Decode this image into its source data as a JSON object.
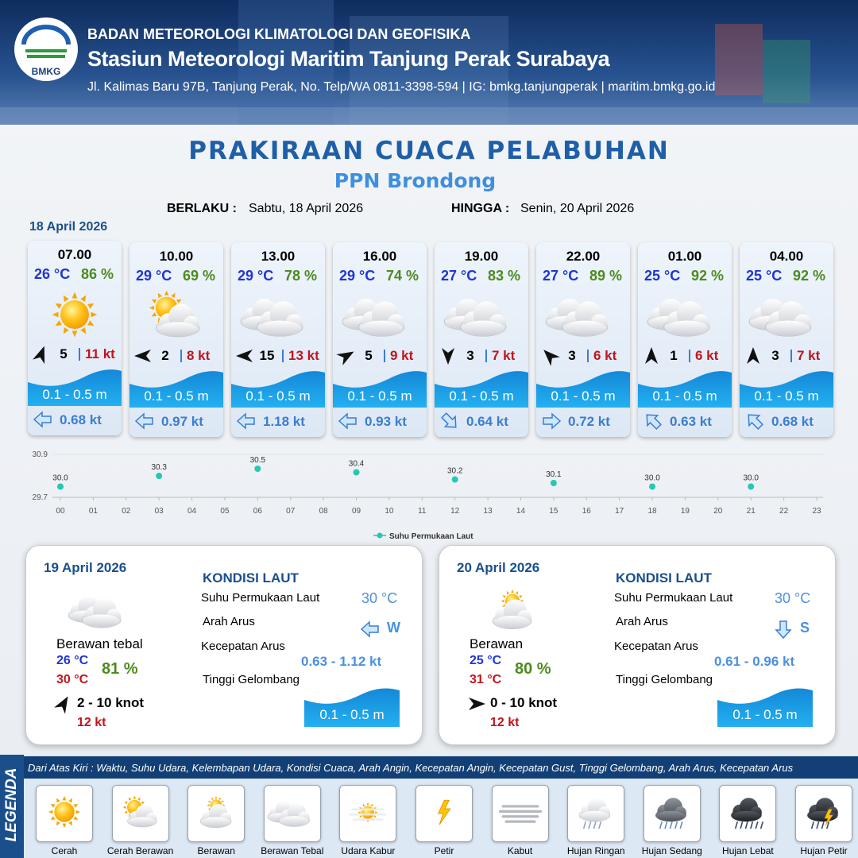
{
  "header": {
    "logo_text": "BMKG",
    "agency": "BADAN METEOROLOGI KLIMATOLOGI DAN GEOFISIKA",
    "station": "Stasiun Meteorologi Maritim Tanjung Perak Surabaya",
    "address": "Jl. Kalimas Baru 97B, Tanjung Perak, No. Telp/WA 0811-3398-594 | IG: bmkg.tanjungperak | maritim.bmkg.go.id"
  },
  "title": "PRAKIRAAN CUACA PELABUHAN",
  "location": "PPN Brondong",
  "validity": {
    "from_label": "BERLAKU :",
    "from": "Sabtu, 18 April 2026",
    "to_label": "HINGGA :",
    "to": "Senin, 20 April 2026"
  },
  "forecast_date": "18 April 2026",
  "forecasts": [
    {
      "time": "07.00",
      "temperature": "26 °C",
      "humidity": "86 %",
      "wind_speed": 5,
      "gust": "11 kt",
      "wave": "0.1 - 0.5 m",
      "current_speed": "0.68 kt"
    },
    {
      "time": "10.00",
      "temperature": "29 °C",
      "humidity": "69 %",
      "wind_speed": 2,
      "gust": "8 kt",
      "wave": "0.1 - 0.5 m",
      "current_speed": "0.97 kt"
    },
    {
      "time": "13.00",
      "temperature": "29 °C",
      "humidity": "78 %",
      "wind_speed": 15,
      "gust": "13 kt",
      "wave": "0.1 - 0.5 m",
      "current_speed": "1.18 kt"
    },
    {
      "time": "16.00",
      "temperature": "29 °C",
      "humidity": "74 %",
      "wind_speed": 5,
      "gust": "9 kt",
      "wave": "0.1 - 0.5 m",
      "current_speed": "0.93 kt"
    },
    {
      "time": "19.00",
      "temperature": "27 °C",
      "humidity": "83 %",
      "wind_speed": 3,
      "gust": "7 kt",
      "wave": "0.1 - 0.5 m",
      "current_speed": "0.64 kt"
    },
    {
      "time": "22.00",
      "temperature": "27 °C",
      "humidity": "89 %",
      "wind_speed": 3,
      "gust": "6 kt",
      "wave": "0.1 - 0.5 m",
      "current_speed": "0.72 kt"
    },
    {
      "time": "01.00",
      "temperature": "25 °C",
      "humidity": "92 %",
      "wind_speed": 1,
      "gust": "6 kt",
      "wave": "0.1 - 0.5 m",
      "current_speed": "0.63 kt"
    },
    {
      "time": "04.00",
      "temperature": "25 °C",
      "humidity": "92 %",
      "wind_speed": 3,
      "gust": "7 kt",
      "wave": "0.1 - 0.5 m",
      "current_speed": "0.68 kt"
    }
  ],
  "chart_data": {
    "type": "scatter",
    "x": [
      0,
      3,
      6,
      9,
      12,
      15,
      18,
      21
    ],
    "series": [
      {
        "name": "Suhu Permukaan Laut",
        "color": "#25c9b2",
        "values": [
          30.0,
          30.3,
          30.5,
          30.4,
          30.2,
          30.1,
          30.0,
          30.0
        ],
        "value_labels": [
          "30.0",
          "30.3",
          "30.5",
          "30.4",
          "30.2",
          "30.1",
          "30.0",
          "30.0"
        ]
      }
    ],
    "xlim": [
      0,
      23
    ],
    "xticks": [
      {
        "value": 0,
        "label": "00"
      },
      {
        "value": 1,
        "label": "01"
      },
      {
        "value": 2,
        "label": "02"
      },
      {
        "value": 3,
        "label": "03"
      },
      {
        "value": 4,
        "label": "04"
      },
      {
        "value": 5,
        "label": "05"
      },
      {
        "value": 6,
        "label": "06"
      },
      {
        "value": 7,
        "label": "07"
      },
      {
        "value": 8,
        "label": "08"
      },
      {
        "value": 9,
        "label": "09"
      },
      10,
      11,
      12,
      13,
      14,
      15,
      16,
      17,
      18,
      19,
      20,
      21,
      22,
      23
    ],
    "ylim": [
      29.7,
      30.9
    ],
    "yticks": [
      29.7,
      30.9
    ],
    "grid": true,
    "legend": "bottom"
  },
  "daily": [
    {
      "date": "19 April 2026",
      "condition": "Berawan tebal",
      "temp_min": "26 °C",
      "temp_max": "30 °C",
      "humidity": "81 %",
      "wind": "2 - 10 knot",
      "gust": "12 kt",
      "sea_title": "KONDISI LAUT",
      "sst_label": "Suhu Permukaan Laut",
      "sst": "30 °C",
      "current_dir_label": "Arah Arus",
      "current_dir": "W",
      "current_speed_label": "Kecepatan Arus",
      "current_speed": "0.63  - 1.12 kt",
      "wave_label": "Tinggi Gelombang",
      "wave": "0.1 - 0.5 m"
    },
    {
      "date": "20 April 2026",
      "condition": "Berawan",
      "temp_min": "25 °C",
      "temp_max": "31 °C",
      "humidity": "80 %",
      "wind": "0 - 10 knot",
      "gust": "12 kt",
      "sea_title": "KONDISI LAUT",
      "sst_label": "Suhu Permukaan Laut",
      "sst": "30 °C",
      "current_dir_label": "Arah Arus",
      "current_dir": "S",
      "current_speed_label": "Kecepatan Arus",
      "current_speed": "0.61 - 0.96 kt",
      "wave_label": "Tinggi Gelombang",
      "wave": "0.1 - 0.5 m"
    }
  ],
  "legend": {
    "title": "LEGENDA",
    "description": "Dari Atas Kiri : Waktu, Suhu Udara, Kelembapan Udara, Kondisi Cuaca, Arah Angin, Kecepatan Angin, Kecepatan Gust, Tinggi Gelombang, Arah Arus, Kecepatan Arus",
    "items": [
      "Cerah",
      "Cerah Berawan",
      "Berawan",
      "Berawan Tebal",
      "Udara Kabur",
      "Petir",
      "Kabut",
      "Hujan Ringan",
      "Hujan Sedang",
      "Hujan Lebat",
      "Hujan Petir"
    ]
  }
}
